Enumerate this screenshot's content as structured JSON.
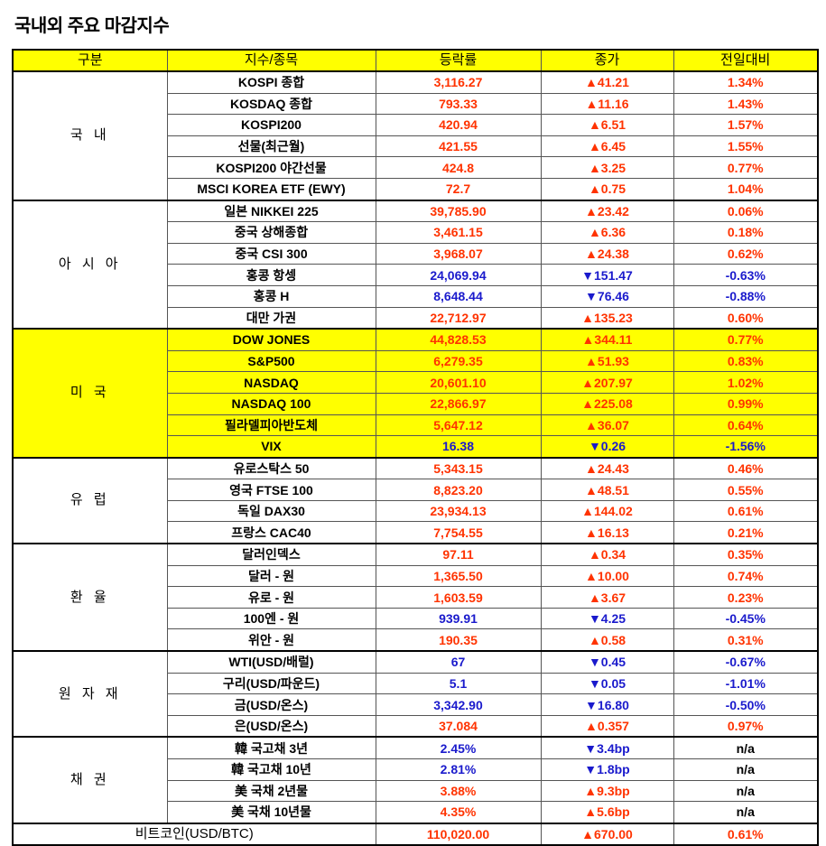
{
  "title": "국내외 주요 마감지수",
  "headers": [
    "구분",
    "지수/종목",
    "등락률",
    "종가",
    "전일대비"
  ],
  "colors": {
    "up": "#ff3300",
    "down": "#1a1acc",
    "highlight": "#ffff00"
  },
  "groups": [
    {
      "category": "국 내",
      "highlight": false,
      "rows": [
        {
          "name": "KOSPI 종합",
          "value": "3,116.27",
          "change": "▲41.21",
          "pct": "1.34%",
          "dir": "up"
        },
        {
          "name": "KOSDAQ 종합",
          "value": "793.33",
          "change": "▲11.16",
          "pct": "1.43%",
          "dir": "up"
        },
        {
          "name": "KOSPI200",
          "value": "420.94",
          "change": "▲6.51",
          "pct": "1.57%",
          "dir": "up"
        },
        {
          "name": "선물(최근월)",
          "value": "421.55",
          "change": "▲6.45",
          "pct": "1.55%",
          "dir": "up"
        },
        {
          "name": "KOSPI200 야간선물",
          "value": "424.8",
          "change": "▲3.25",
          "pct": "0.77%",
          "dir": "up"
        },
        {
          "name": "MSCI KOREA ETF (EWY)",
          "value": "72.7",
          "change": "▲0.75",
          "pct": "1.04%",
          "dir": "up"
        }
      ]
    },
    {
      "category": "아 시 아",
      "highlight": false,
      "rows": [
        {
          "name": "일본 NIKKEI 225",
          "value": "39,785.90",
          "change": "▲23.42",
          "pct": "0.06%",
          "dir": "up"
        },
        {
          "name": "중국 상해종합",
          "value": "3,461.15",
          "change": "▲6.36",
          "pct": "0.18%",
          "dir": "up"
        },
        {
          "name": "중국 CSI 300",
          "value": "3,968.07",
          "change": "▲24.38",
          "pct": "0.62%",
          "dir": "up"
        },
        {
          "name": "홍콩 항셍",
          "value": "24,069.94",
          "change": "▼151.47",
          "pct": "-0.63%",
          "dir": "down"
        },
        {
          "name": "홍콩 H",
          "value": "8,648.44",
          "change": "▼76.46",
          "pct": "-0.88%",
          "dir": "down"
        },
        {
          "name": "대만 가권",
          "value": "22,712.97",
          "change": "▲135.23",
          "pct": "0.60%",
          "dir": "up"
        }
      ]
    },
    {
      "category": "미 국",
      "highlight": true,
      "rows": [
        {
          "name": "DOW JONES",
          "value": "44,828.53",
          "change": "▲344.11",
          "pct": "0.77%",
          "dir": "up"
        },
        {
          "name": "S&P500",
          "value": "6,279.35",
          "change": "▲51.93",
          "pct": "0.83%",
          "dir": "up"
        },
        {
          "name": "NASDAQ",
          "value": "20,601.10",
          "change": "▲207.97",
          "pct": "1.02%",
          "dir": "up"
        },
        {
          "name": "NASDAQ 100",
          "value": "22,866.97",
          "change": "▲225.08",
          "pct": "0.99%",
          "dir": "up"
        },
        {
          "name": "필라델피아반도체",
          "value": "5,647.12",
          "change": "▲36.07",
          "pct": "0.64%",
          "dir": "up"
        },
        {
          "name": "VIX",
          "value": "16.38",
          "change": "▼0.26",
          "pct": "-1.56%",
          "dir": "down"
        }
      ]
    },
    {
      "category": "유 럽",
      "highlight": false,
      "rows": [
        {
          "name": "유로스탁스 50",
          "value": "5,343.15",
          "change": "▲24.43",
          "pct": "0.46%",
          "dir": "up"
        },
        {
          "name": "영국 FTSE 100",
          "value": "8,823.20",
          "change": "▲48.51",
          "pct": "0.55%",
          "dir": "up"
        },
        {
          "name": "독일 DAX30",
          "value": "23,934.13",
          "change": "▲144.02",
          "pct": "0.61%",
          "dir": "up"
        },
        {
          "name": "프랑스 CAC40",
          "value": "7,754.55",
          "change": "▲16.13",
          "pct": "0.21%",
          "dir": "up"
        }
      ]
    },
    {
      "category": "환 율",
      "highlight": false,
      "rows": [
        {
          "name": "달러인덱스",
          "value": "97.11",
          "change": "▲0.34",
          "pct": "0.35%",
          "dir": "up"
        },
        {
          "name": "달러 - 원",
          "value": "1,365.50",
          "change": "▲10.00",
          "pct": "0.74%",
          "dir": "up"
        },
        {
          "name": "유로 - 원",
          "value": "1,603.59",
          "change": "▲3.67",
          "pct": "0.23%",
          "dir": "up"
        },
        {
          "name": "100엔 - 원",
          "value": "939.91",
          "change": "▼4.25",
          "pct": "-0.45%",
          "dir": "down"
        },
        {
          "name": "위안 - 원",
          "value": "190.35",
          "change": "▲0.58",
          "pct": "0.31%",
          "dir": "up"
        }
      ]
    },
    {
      "category": "원 자 재",
      "highlight": false,
      "rows": [
        {
          "name": "WTI(USD/배럴)",
          "value": "67",
          "change": "▼0.45",
          "pct": "-0.67%",
          "dir": "down"
        },
        {
          "name": "구리(USD/파운드)",
          "value": "5.1",
          "change": "▼0.05",
          "pct": "-1.01%",
          "dir": "down"
        },
        {
          "name": "금(USD/온스)",
          "value": "3,342.90",
          "change": "▼16.80",
          "pct": "-0.50%",
          "dir": "down"
        },
        {
          "name": "은(USD/온스)",
          "value": "37.084",
          "change": "▲0.357",
          "pct": "0.97%",
          "dir": "up"
        }
      ]
    },
    {
      "category": "채 권",
      "highlight": false,
      "rows": [
        {
          "name": "韓 국고채 3년",
          "value": "2.45%",
          "change": "▼3.4bp",
          "pct": "n/a",
          "dir": "down"
        },
        {
          "name": "韓 국고채 10년",
          "value": "2.81%",
          "change": "▼1.8bp",
          "pct": "n/a",
          "dir": "down"
        },
        {
          "name": "美 국채 2년물",
          "value": "3.88%",
          "change": "▲9.3bp",
          "pct": "n/a",
          "dir": "up"
        },
        {
          "name": "美 국채 10년물",
          "value": "4.35%",
          "change": "▲5.6bp",
          "pct": "n/a",
          "dir": "up"
        }
      ]
    }
  ],
  "bitcoin": {
    "name": "비트코인(USD/BTC)",
    "value": "110,020.00",
    "change": "▲670.00",
    "pct": "0.61%",
    "dir": "up"
  }
}
